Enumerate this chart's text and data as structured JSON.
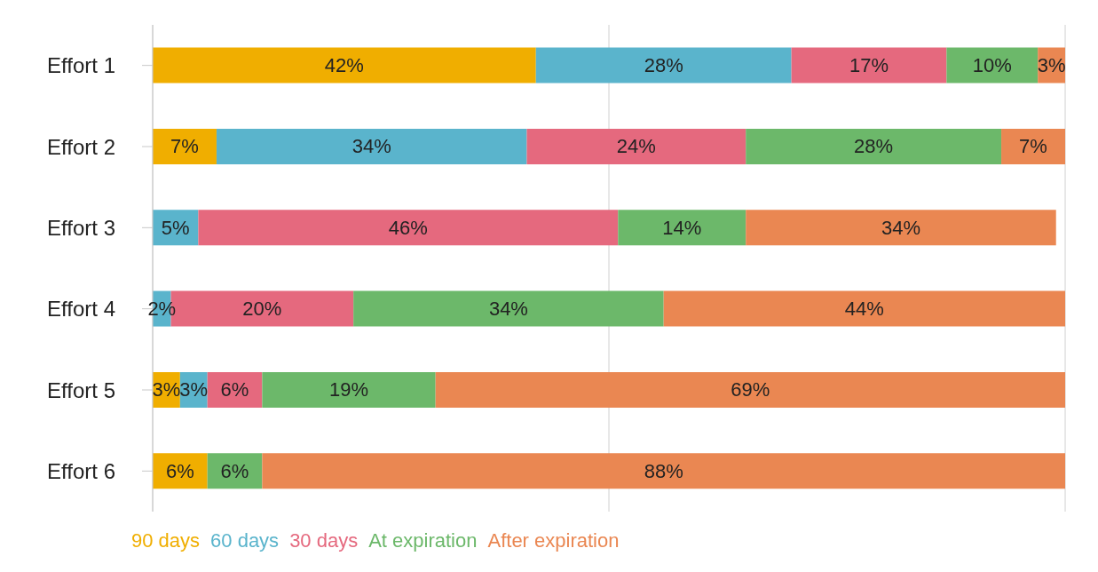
{
  "chart_data": {
    "type": "bar",
    "orientation": "horizontal",
    "stacked": true,
    "categories": [
      "Effort 1",
      "Effort 2",
      "Effort 3",
      "Effort 4",
      "Effort 5",
      "Effort 6"
    ],
    "series": [
      {
        "name": "90 days",
        "color": "#f0ae00",
        "values": [
          42,
          7,
          0,
          0,
          3,
          6
        ],
        "value_labels": [
          "42%",
          "7%",
          null,
          null,
          "3%",
          "6%"
        ]
      },
      {
        "name": "60 days",
        "color": "#5ab4cc",
        "values": [
          28,
          34,
          5,
          2,
          3,
          0
        ],
        "value_labels": [
          "28%",
          "34%",
          "5%",
          "2%",
          "3%",
          null
        ]
      },
      {
        "name": "30 days",
        "color": "#e5697e",
        "values": [
          17,
          24,
          46,
          20,
          6,
          0
        ],
        "value_labels": [
          "17%",
          "24%",
          "46%",
          "20%",
          "6%",
          null
        ]
      },
      {
        "name": "At expiration",
        "color": "#6cb86a",
        "values": [
          10,
          28,
          14,
          34,
          19,
          6
        ],
        "value_labels": [
          "10%",
          "28%",
          "14%",
          "34%",
          "19%",
          "6%"
        ]
      },
      {
        "name": "After expiration",
        "color": "#ea8752",
        "values": [
          3,
          7,
          34,
          44,
          69,
          88
        ],
        "value_labels": [
          "3%",
          "7%",
          "34%",
          "44%",
          "69%",
          "88%"
        ]
      }
    ],
    "xlim": [
      0,
      100
    ],
    "xticks": [
      {
        "value": 0,
        "label": null
      },
      {
        "value": 50,
        "label": null
      },
      {
        "value": 100,
        "label": null
      }
    ],
    "tick_labels": "y",
    "grid": "x",
    "legend": "bottom"
  }
}
